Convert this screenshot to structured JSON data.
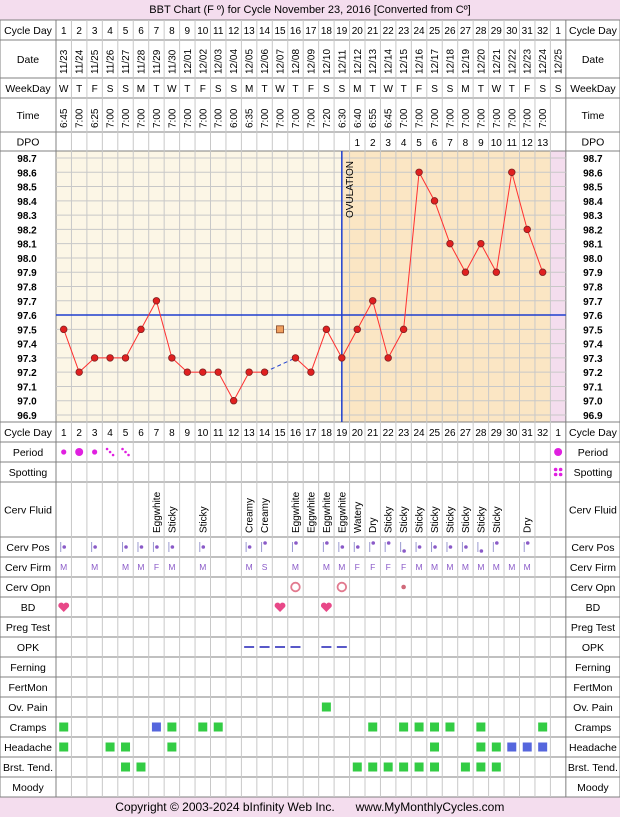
{
  "header": {
    "title": "BBT Chart (F º) for Cycle November 23, 2016  [Converted from Cº]"
  },
  "footer": {
    "copyright": "Copyright © 2003-2024 bInfinity Web Inc.",
    "site": "www.MyMonthlyCycles.com"
  },
  "row_labels": {
    "cycle_day": "Cycle Day",
    "date": "Date",
    "weekday": "WeekDay",
    "time": "Time",
    "dpo": "DPO",
    "period": "Period",
    "spotting": "Spotting",
    "cerv_fluid": "Cerv Fluid",
    "cerv_pos": "Cerv Pos",
    "cerv_firm": "Cerv Firm",
    "cerv_opn": "Cerv Opn",
    "bd": "BD",
    "preg_test": "Preg Test",
    "opk": "OPK",
    "ferning": "Ferning",
    "fertmon": "FertMon",
    "ov_pain": "Ov. Pain",
    "cramps": "Cramps",
    "headache": "Headache",
    "brst_tend": "Brst. Tend.",
    "moody": "Moody"
  },
  "ovulation_label": "OVULATION",
  "colors": {
    "page_bg": "#f4ddee",
    "follicular_bg": "#fcf6e6",
    "luteal_bg": "#fbe6c4",
    "grid": "#c8c8c8",
    "line": "#ff3030",
    "point": "#e02020",
    "coverline": "#1e3ecf",
    "period_dot": "#e020e0",
    "cervpos_dot": "#8a5ac8",
    "bd_heart": "#e84888",
    "symptom_green": "#33cc44",
    "symptom_blue": "#5566dd",
    "cerv_opn_ring": "#e27a8f",
    "cerv_opn_dot": "#d06a7a",
    "opk_dash": "#5858c8"
  },
  "chart_data": {
    "type": "line",
    "title": "BBT Chart (F º) for Cycle November 23, 2016  [Converted from Cº]",
    "cycle_days": [
      1,
      2,
      3,
      4,
      5,
      6,
      7,
      8,
      9,
      10,
      11,
      12,
      13,
      14,
      15,
      16,
      17,
      18,
      19,
      20,
      21,
      22,
      23,
      24,
      25,
      26,
      27,
      28,
      29,
      30,
      31,
      32
    ],
    "next_cycle_day": "1",
    "dates": [
      "11/23",
      "11/24",
      "11/25",
      "11/26",
      "11/27",
      "11/28",
      "11/29",
      "11/30",
      "12/01",
      "12/02",
      "12/03",
      "12/04",
      "12/05",
      "12/06",
      "12/07",
      "12/08",
      "12/09",
      "12/10",
      "12/11",
      "12/12",
      "12/13",
      "12/14",
      "12/15",
      "12/16",
      "12/17",
      "12/18",
      "12/19",
      "12/20",
      "12/21",
      "12/22",
      "12/23",
      "12/24",
      "12/25"
    ],
    "weekdays": [
      "W",
      "T",
      "F",
      "S",
      "S",
      "M",
      "T",
      "W",
      "T",
      "F",
      "S",
      "S",
      "M",
      "T",
      "W",
      "T",
      "F",
      "S",
      "S",
      "M",
      "T",
      "W",
      "T",
      "F",
      "S",
      "S",
      "M",
      "T",
      "W",
      "T",
      "F",
      "S",
      "S"
    ],
    "times": [
      "6:45",
      "7:00",
      "6:25",
      "7:00",
      "7:00",
      "7:00",
      "7:00",
      "7:00",
      "7:00",
      "7:00",
      "7:00",
      "6:00",
      "6:35",
      "7:00",
      "7:00",
      "7:00",
      "7:00",
      "7:20",
      "6:30",
      "6:40",
      "6:55",
      "6:45",
      "7:00",
      "7:00",
      "7:00",
      "7:00",
      "7:00",
      "7:00",
      "7:00",
      "7:00",
      "7:00",
      "7:00",
      ""
    ],
    "dpo": [
      "",
      "",
      "",
      "",
      "",
      "",
      "",
      "",
      "",
      "",
      "",
      "",
      "",
      "",
      "",
      "",
      "",
      "",
      "",
      "1",
      "2",
      "3",
      "4",
      "5",
      "6",
      "7",
      "8",
      "9",
      "10",
      "11",
      "12",
      "13"
    ],
    "temps": [
      97.5,
      97.2,
      97.3,
      97.3,
      97.3,
      97.5,
      97.7,
      97.3,
      97.2,
      97.2,
      97.2,
      97.0,
      97.2,
      97.2,
      null,
      97.3,
      97.2,
      97.5,
      97.3,
      97.5,
      97.7,
      97.3,
      97.5,
      98.6,
      98.4,
      98.1,
      97.9,
      98.1,
      97.9,
      98.6,
      98.2,
      97.9
    ],
    "discarded_temp": {
      "cycle_day": 15,
      "value": 97.5
    },
    "y_ticks": [
      "98.7",
      "98.6",
      "98.5",
      "98.4",
      "98.3",
      "98.2",
      "98.1",
      "98.0",
      "97.9",
      "97.8",
      "97.7",
      "97.6",
      "97.5",
      "97.4",
      "97.3",
      "97.2",
      "97.1",
      "97.0",
      "96.9"
    ],
    "ylim": [
      96.9,
      98.7
    ],
    "coverline": 97.6,
    "ovulation_day": 19,
    "grid": true
  },
  "symptoms": {
    "period": [
      {
        "day": 1,
        "level": "small"
      },
      {
        "day": 2,
        "level": "big"
      },
      {
        "day": 3,
        "level": "small"
      },
      {
        "day": 4,
        "level": "spotting"
      },
      {
        "day": 5,
        "level": "spotting"
      }
    ],
    "next_period": true,
    "spotting_next": true,
    "cerv_fluid": [
      {
        "day": 7,
        "text": "Eggwhite"
      },
      {
        "day": 8,
        "text": "Sticky"
      },
      {
        "day": 10,
        "text": "Sticky"
      },
      {
        "day": 13,
        "text": "Creamy"
      },
      {
        "day": 14,
        "text": "Creamy"
      },
      {
        "day": 16,
        "text": "Eggwhite"
      },
      {
        "day": 17,
        "text": "Eggwhite"
      },
      {
        "day": 18,
        "text": "Eggwhite"
      },
      {
        "day": 19,
        "text": "Eggwhite"
      },
      {
        "day": 20,
        "text": "Watery"
      },
      {
        "day": 21,
        "text": "Dry"
      },
      {
        "day": 22,
        "text": "Sticky"
      },
      {
        "day": 23,
        "text": "Sticky"
      },
      {
        "day": 24,
        "text": "Sticky"
      },
      {
        "day": 25,
        "text": "Sticky"
      },
      {
        "day": 26,
        "text": "Sticky"
      },
      {
        "day": 27,
        "text": "Sticky"
      },
      {
        "day": 28,
        "text": "Sticky"
      },
      {
        "day": 29,
        "text": "Sticky"
      },
      {
        "day": 31,
        "text": "Dry"
      }
    ],
    "cerv_pos": [
      {
        "day": 1,
        "pos": "mid"
      },
      {
        "day": 3,
        "pos": "mid"
      },
      {
        "day": 5,
        "pos": "mid"
      },
      {
        "day": 6,
        "pos": "mid"
      },
      {
        "day": 7,
        "pos": "mid"
      },
      {
        "day": 8,
        "pos": "mid"
      },
      {
        "day": 10,
        "pos": "mid"
      },
      {
        "day": 13,
        "pos": "mid"
      },
      {
        "day": 14,
        "pos": "high"
      },
      {
        "day": 16,
        "pos": "high"
      },
      {
        "day": 18,
        "pos": "high"
      },
      {
        "day": 19,
        "pos": "mid"
      },
      {
        "day": 20,
        "pos": "mid"
      },
      {
        "day": 21,
        "pos": "high"
      },
      {
        "day": 22,
        "pos": "high"
      },
      {
        "day": 23,
        "pos": "low"
      },
      {
        "day": 24,
        "pos": "mid"
      },
      {
        "day": 25,
        "pos": "mid"
      },
      {
        "day": 26,
        "pos": "mid"
      },
      {
        "day": 27,
        "pos": "mid"
      },
      {
        "day": 28,
        "pos": "low"
      },
      {
        "day": 29,
        "pos": "high"
      },
      {
        "day": 31,
        "pos": "high"
      }
    ],
    "cerv_firm": [
      {
        "day": 1,
        "text": "M"
      },
      {
        "day": 3,
        "text": "M"
      },
      {
        "day": 5,
        "text": "M"
      },
      {
        "day": 6,
        "text": "M"
      },
      {
        "day": 7,
        "text": "F"
      },
      {
        "day": 8,
        "text": "M"
      },
      {
        "day": 10,
        "text": "M"
      },
      {
        "day": 13,
        "text": "M"
      },
      {
        "day": 14,
        "text": "S"
      },
      {
        "day": 16,
        "text": "M"
      },
      {
        "day": 18,
        "text": "M"
      },
      {
        "day": 19,
        "text": "M"
      },
      {
        "day": 20,
        "text": "F"
      },
      {
        "day": 21,
        "text": "F"
      },
      {
        "day": 22,
        "text": "F"
      },
      {
        "day": 23,
        "text": "F"
      },
      {
        "day": 24,
        "text": "M"
      },
      {
        "day": 25,
        "text": "M"
      },
      {
        "day": 26,
        "text": "M"
      },
      {
        "day": 27,
        "text": "M"
      },
      {
        "day": 28,
        "text": "M"
      },
      {
        "day": 29,
        "text": "M"
      },
      {
        "day": 30,
        "text": "M"
      },
      {
        "day": 31,
        "text": "M"
      }
    ],
    "cerv_opn": [
      {
        "day": 16,
        "type": "open"
      },
      {
        "day": 19,
        "type": "open"
      },
      {
        "day": 23,
        "type": "closed"
      }
    ],
    "bd": [
      1,
      15,
      18
    ],
    "opk": [
      13,
      14,
      15,
      16,
      18,
      19
    ],
    "ov_pain": [
      18
    ],
    "cramps": [
      {
        "day": 1,
        "c": "g"
      },
      {
        "day": 7,
        "c": "b"
      },
      {
        "day": 8,
        "c": "g"
      },
      {
        "day": 10,
        "c": "g"
      },
      {
        "day": 11,
        "c": "g"
      },
      {
        "day": 21,
        "c": "g"
      },
      {
        "day": 23,
        "c": "g"
      },
      {
        "day": 24,
        "c": "g"
      },
      {
        "day": 25,
        "c": "g"
      },
      {
        "day": 26,
        "c": "g"
      },
      {
        "day": 28,
        "c": "g"
      },
      {
        "day": 32,
        "c": "g"
      }
    ],
    "headache": [
      {
        "day": 1,
        "c": "g"
      },
      {
        "day": 4,
        "c": "g"
      },
      {
        "day": 5,
        "c": "g"
      },
      {
        "day": 8,
        "c": "g"
      },
      {
        "day": 25,
        "c": "g"
      },
      {
        "day": 28,
        "c": "g"
      },
      {
        "day": 29,
        "c": "g"
      },
      {
        "day": 30,
        "c": "b"
      },
      {
        "day": 31,
        "c": "b"
      },
      {
        "day": 32,
        "c": "b"
      }
    ],
    "brst_tend": [
      {
        "day": 5,
        "c": "g"
      },
      {
        "day": 6,
        "c": "g"
      },
      {
        "day": 20,
        "c": "g"
      },
      {
        "day": 21,
        "c": "g"
      },
      {
        "day": 22,
        "c": "g"
      },
      {
        "day": 23,
        "c": "g"
      },
      {
        "day": 24,
        "c": "g"
      },
      {
        "day": 25,
        "c": "g"
      },
      {
        "day": 27,
        "c": "g"
      },
      {
        "day": 28,
        "c": "g"
      },
      {
        "day": 29,
        "c": "g"
      }
    ]
  }
}
